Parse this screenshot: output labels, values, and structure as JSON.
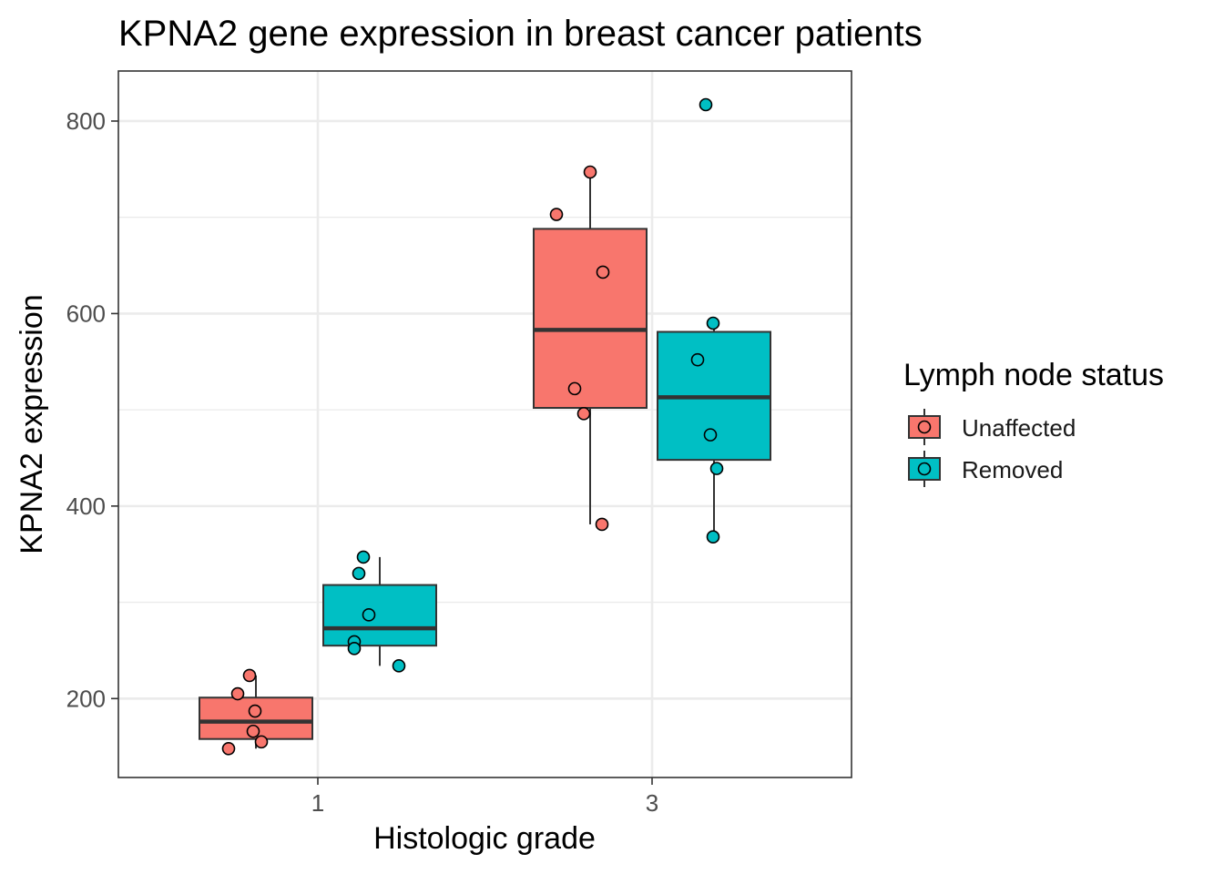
{
  "chart_data": {
    "type": "boxplot",
    "title": "KPNA2 gene expression in breast cancer patients",
    "xlabel": "Histologic grade",
    "ylabel": "KPNA2 expression",
    "categories": [
      "1",
      "3"
    ],
    "ylim": [
      118,
      852
    ],
    "yticks": [
      200,
      400,
      600,
      800
    ],
    "grid": true,
    "legend": {
      "title": "Lymph node status",
      "position": "right",
      "entries": [
        "Unaffected",
        "Removed"
      ]
    },
    "series": [
      {
        "name": "Unaffected",
        "color": "#F8766D",
        "boxes": [
          {
            "category": "1",
            "whisker_low": 148,
            "q1": 158,
            "median": 176,
            "q3": 201,
            "whisker_high": 224
          },
          {
            "category": "3",
            "whisker_low": 381,
            "q1": 502,
            "median": 583,
            "q3": 688,
            "whisker_high": 747
          }
        ],
        "points": [
          {
            "category": "1",
            "y": 224
          },
          {
            "category": "1",
            "y": 205
          },
          {
            "category": "1",
            "y": 187
          },
          {
            "category": "1",
            "y": 166
          },
          {
            "category": "1",
            "y": 155
          },
          {
            "category": "1",
            "y": 148
          },
          {
            "category": "3",
            "y": 747
          },
          {
            "category": "3",
            "y": 703
          },
          {
            "category": "3",
            "y": 643
          },
          {
            "category": "3",
            "y": 522
          },
          {
            "category": "3",
            "y": 496
          },
          {
            "category": "3",
            "y": 381
          }
        ]
      },
      {
        "name": "Removed",
        "color": "#00BFC4",
        "boxes": [
          {
            "category": "1",
            "whisker_low": 234,
            "q1": 255,
            "median": 273,
            "q3": 318,
            "whisker_high": 347
          },
          {
            "category": "3",
            "whisker_low": 368,
            "q1": 448,
            "median": 513,
            "q3": 581,
            "whisker_high": 590
          }
        ],
        "points": [
          {
            "category": "1",
            "y": 347
          },
          {
            "category": "1",
            "y": 330
          },
          {
            "category": "1",
            "y": 287
          },
          {
            "category": "1",
            "y": 259
          },
          {
            "category": "1",
            "y": 252
          },
          {
            "category": "1",
            "y": 234
          },
          {
            "category": "3",
            "y": 817
          },
          {
            "category": "3",
            "y": 590
          },
          {
            "category": "3",
            "y": 552
          },
          {
            "category": "3",
            "y": 474
          },
          {
            "category": "3",
            "y": 439
          },
          {
            "category": "3",
            "y": 368
          }
        ]
      }
    ]
  }
}
